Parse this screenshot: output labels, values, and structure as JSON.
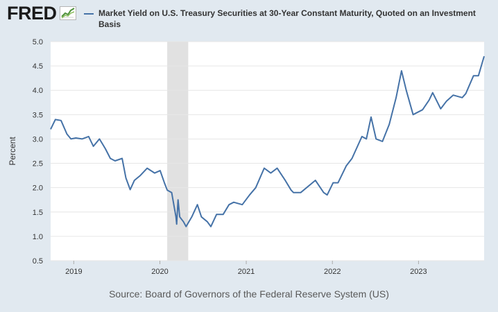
{
  "header": {
    "logo_text": "FRED",
    "logo_icon": "fred-chart-icon"
  },
  "colors": {
    "background": "#e1e9f0",
    "plot_background": "#ffffff",
    "series": "#4572a7",
    "recession": "#e1e1e1",
    "grid": "#e6e6e6"
  },
  "source": "Source: Board of Governors of the Federal Reserve System (US)",
  "chart_data": {
    "type": "line",
    "title": "",
    "xlabel": "",
    "ylabel": "Percent",
    "ylim": [
      0.5,
      5.0
    ],
    "yticks": [
      "0.5",
      "1.0",
      "1.5",
      "2.0",
      "2.5",
      "3.0",
      "3.5",
      "4.0",
      "4.5",
      "5.0"
    ],
    "xlim": [
      "2018-09-25",
      "2023-10-06"
    ],
    "xticks": [
      "2019",
      "2020",
      "2021",
      "2022",
      "2023"
    ],
    "grid": true,
    "legend": "top",
    "recessions": [
      {
        "start": "2020-02-01",
        "end": "2020-04-30"
      }
    ],
    "series": [
      {
        "name": "Market Yield on U.S. Treasury Securities at 30-Year Constant Maturity, Quoted on an Investment Basis",
        "x": [
          "2018-09-25",
          "2018-10-15",
          "2018-11-08",
          "2018-12-03",
          "2018-12-20",
          "2019-01-10",
          "2019-02-05",
          "2019-03-05",
          "2019-03-25",
          "2019-04-20",
          "2019-05-15",
          "2019-06-05",
          "2019-06-25",
          "2019-07-25",
          "2019-08-10",
          "2019-08-28",
          "2019-09-15",
          "2019-10-10",
          "2019-11-08",
          "2019-12-10",
          "2020-01-02",
          "2020-01-20",
          "2020-02-01",
          "2020-02-20",
          "2020-03-09",
          "2020-03-12",
          "2020-03-18",
          "2020-03-25",
          "2020-04-10",
          "2020-04-21",
          "2020-05-15",
          "2020-06-08",
          "2020-06-25",
          "2020-07-20",
          "2020-08-04",
          "2020-08-28",
          "2020-09-25",
          "2020-10-20",
          "2020-11-09",
          "2020-12-15",
          "2021-01-15",
          "2021-02-10",
          "2021-03-18",
          "2021-04-15",
          "2021-05-12",
          "2021-06-15",
          "2021-07-10",
          "2021-07-20",
          "2021-08-20",
          "2021-10-21",
          "2021-11-25",
          "2021-12-10",
          "2022-01-04",
          "2022-01-25",
          "2022-03-01",
          "2022-03-25",
          "2022-05-06",
          "2022-05-25",
          "2022-06-14",
          "2022-07-05",
          "2022-08-01",
          "2022-08-30",
          "2022-09-28",
          "2022-10-21",
          "2022-11-10",
          "2022-12-09",
          "2023-01-18",
          "2023-02-15",
          "2023-03-02",
          "2023-04-05",
          "2023-04-30",
          "2023-05-28",
          "2023-07-05",
          "2023-07-20",
          "2023-08-22",
          "2023-09-12",
          "2023-10-06"
        ],
        "values": [
          3.2,
          3.4,
          3.38,
          3.1,
          3.0,
          3.02,
          3.0,
          3.05,
          2.85,
          3.0,
          2.8,
          2.6,
          2.55,
          2.6,
          2.2,
          1.96,
          2.15,
          2.25,
          2.4,
          2.3,
          2.35,
          2.1,
          1.95,
          1.9,
          1.4,
          1.25,
          1.75,
          1.4,
          1.3,
          1.2,
          1.4,
          1.65,
          1.4,
          1.3,
          1.2,
          1.45,
          1.45,
          1.65,
          1.7,
          1.65,
          1.85,
          2.0,
          2.4,
          2.3,
          2.4,
          2.15,
          1.95,
          1.9,
          1.9,
          2.15,
          1.9,
          1.85,
          2.1,
          2.1,
          2.45,
          2.6,
          3.05,
          3.0,
          3.45,
          3.0,
          2.95,
          3.3,
          3.85,
          4.4,
          4.0,
          3.5,
          3.6,
          3.8,
          3.95,
          3.62,
          3.78,
          3.9,
          3.85,
          3.93,
          4.3,
          4.3,
          4.7
        ]
      }
    ]
  }
}
